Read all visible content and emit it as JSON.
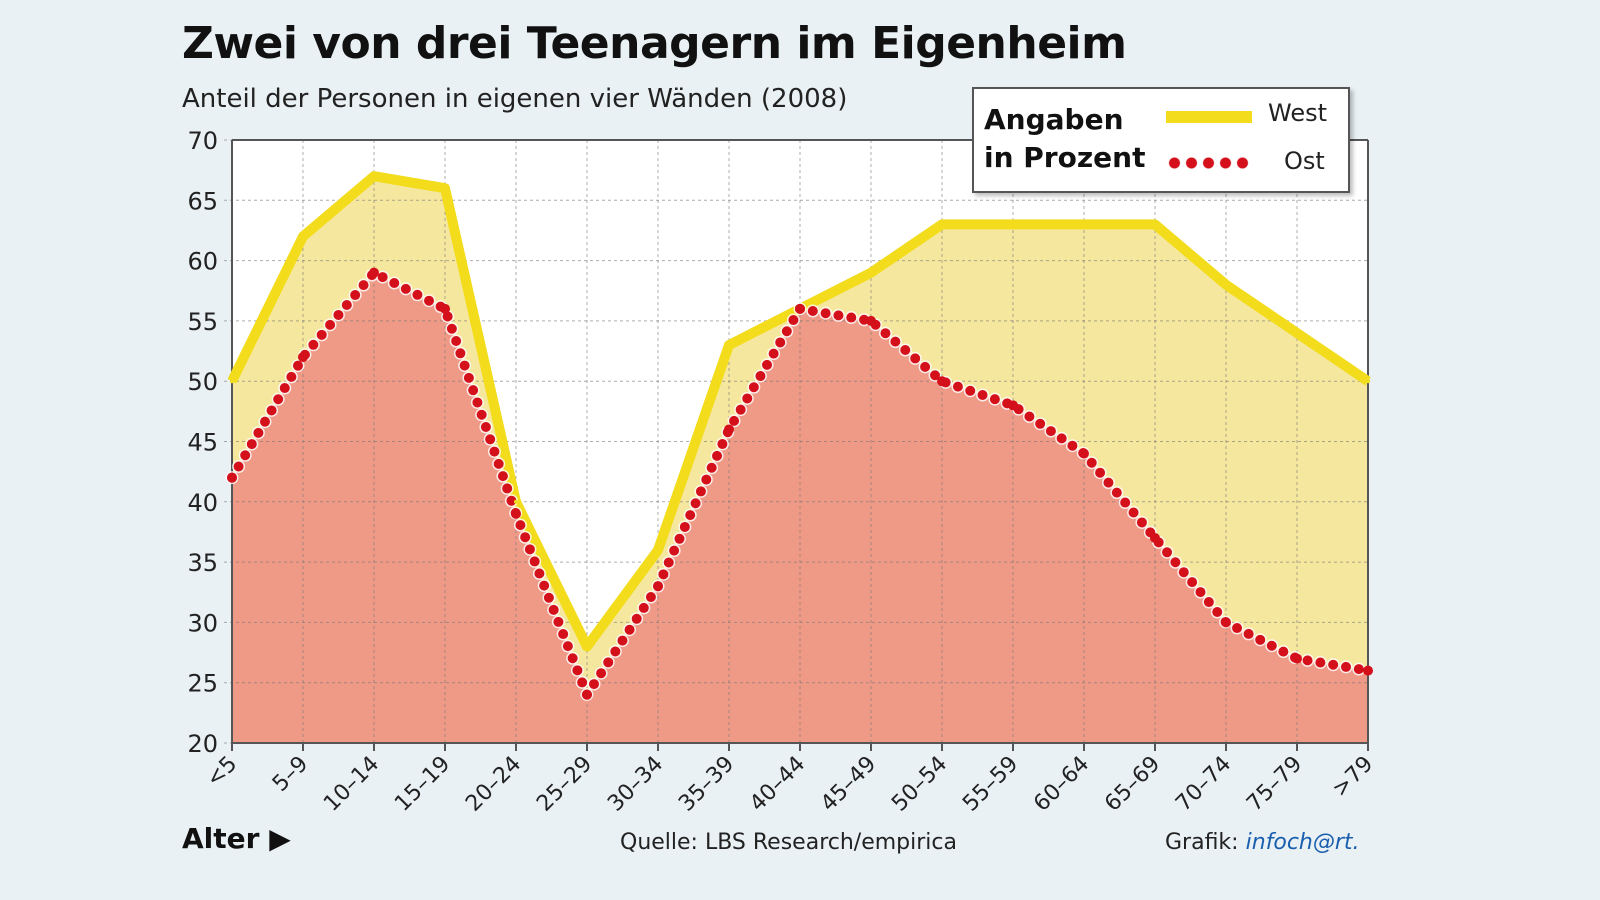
{
  "title": "Zwei von drei Teenagern im Eigenheim",
  "subtitle": "Anteil der Personen in eigenen vier Wänden (2008)",
  "legend": {
    "title": "Angaben in Prozent",
    "west": "West",
    "ost": "Ost"
  },
  "footer": {
    "xlabel": "Alter ▶",
    "source": "Quelle: LBS Research/empirica",
    "credit_prefix": "Grafik: ",
    "credit_brand": "infoch@rt."
  },
  "colors": {
    "west_line": "#f2dc1c",
    "west_fill": "#f6e79e",
    "ost_dots": "#d4101b",
    "ost_fill": "#ee9a86",
    "background": "#e9f1f5"
  },
  "chart_data": {
    "type": "line",
    "title": "Zwei von drei Teenagern im Eigenheim",
    "subtitle": "Anteil der Personen in eigenen vier Wänden (2008)",
    "xlabel": "Alter",
    "ylabel": "",
    "ylim": [
      20,
      70
    ],
    "yticks": [
      20,
      25,
      30,
      35,
      40,
      45,
      50,
      55,
      60,
      65,
      70
    ],
    "grid": true,
    "legend_placement": "top-right",
    "categories": [
      "<5",
      "5–9",
      "10–14",
      "15–19",
      "20–24",
      "25–29",
      "30–34",
      "35–39",
      "40–44",
      "45–49",
      "50–54",
      "55–59",
      "60–64",
      "65–69",
      "70–74",
      "75–79",
      ">79"
    ],
    "series": [
      {
        "name": "West",
        "values": [
          50,
          62,
          67,
          66,
          40,
          28,
          36,
          53,
          56,
          59,
          63,
          63,
          63,
          63,
          58,
          54,
          50
        ]
      },
      {
        "name": "Ost",
        "values": [
          42,
          52,
          59,
          56,
          39,
          24,
          33,
          46,
          56,
          55,
          50,
          48,
          44,
          37,
          30,
          27,
          26
        ]
      }
    ]
  }
}
